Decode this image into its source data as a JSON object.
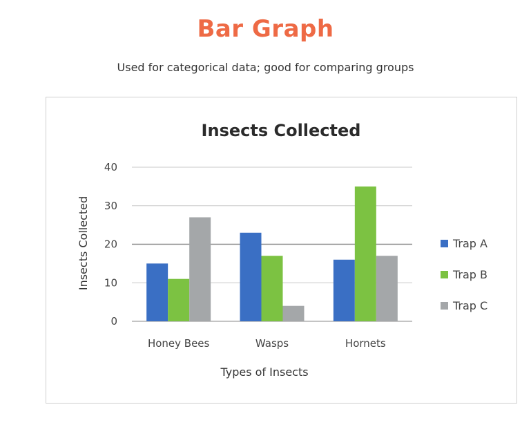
{
  "header": {
    "title": "Bar Graph",
    "subtitle": "Used for categorical data; good for comparing groups"
  },
  "colors": {
    "title_accent": "#ee6a45",
    "trap_a": "#3a6fc4",
    "trap_b": "#7cc242",
    "trap_c": "#a4a7a9",
    "gridline": "#c8c8c8"
  },
  "chart_data": {
    "type": "bar",
    "title": "Insects Collected",
    "xlabel": "Types of Insects",
    "ylabel": "Insects Collected",
    "categories": [
      "Honey Bees",
      "Wasps",
      "Hornets"
    ],
    "series": [
      {
        "name": "Trap A",
        "color": "#3a6fc4",
        "values": [
          15,
          23,
          16
        ]
      },
      {
        "name": "Trap B",
        "color": "#7cc242",
        "values": [
          11,
          17,
          35
        ]
      },
      {
        "name": "Trap C",
        "color": "#a4a7a9",
        "values": [
          27,
          4,
          17
        ]
      }
    ],
    "ylim": [
      0,
      40
    ],
    "yticks": [
      0,
      10,
      20,
      30,
      40
    ],
    "yticklabels": [
      "0",
      "10",
      "20",
      "30",
      "40"
    ],
    "grid": true,
    "legend_position": "right"
  }
}
